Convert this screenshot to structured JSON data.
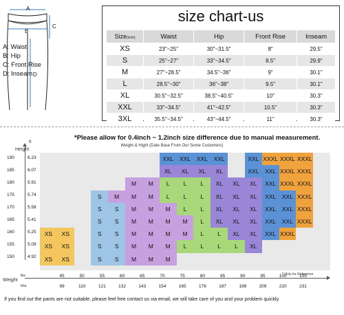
{
  "measure_labels": {
    "a": "A: Waist",
    "b": "B: Hip",
    "c": "C: Front Rise",
    "d": "D: Inseam",
    "letter_a": "A",
    "letter_b": "B",
    "letter_c": "C",
    "letter_d": "D"
  },
  "size_chart": {
    "title": "size chart-us",
    "headers": {
      "size": "Size",
      "size_unit": "(inch)",
      "waist": "Waist",
      "hip": "Hip",
      "front_rise": "Front Rise",
      "inseam": "Inseam"
    },
    "rows": [
      {
        "size": "XS",
        "waist": "23\"~25\"",
        "hip": "30\"~31.5\"",
        "rise": "8\"",
        "inseam": "29.5\""
      },
      {
        "size": "S",
        "waist": "25\"~27\"",
        "hip": "33\"~34.5\"",
        "rise": "8.5\"",
        "inseam": "29.9\""
      },
      {
        "size": "M",
        "waist": "27\"~28.5\"",
        "hip": "34.5\"~36\"",
        "rise": "9\"",
        "inseam": "30.1\""
      },
      {
        "size": "L",
        "waist": "28.5\"~30\"",
        "hip": "36\"~38\"",
        "rise": "9.5\"",
        "inseam": "30.1\""
      },
      {
        "size": "XL",
        "waist": "30.5\"~32.5\"",
        "hip": "38.5\"~40.5\"",
        "rise": "10\"",
        "inseam": "30.3\""
      },
      {
        "size": "XXL",
        "waist": "33\"~34.5\"",
        "hip": "41\"~42.5\"",
        "rise": "10.5\"",
        "inseam": "30.3\""
      },
      {
        "size": "3XL",
        "waist": "35.5\"~34.5\"",
        "hip": "43\"~44.5\"",
        "rise": "11\"",
        "inseam": "30.3\""
      }
    ]
  },
  "note": "*Please allow for 0.4inch ~ 1.2inch size difference due to manual measurement.",
  "subnote": "Weight & Hight (Date Base From Our Some Customers)",
  "axis": {
    "height_title": "Height",
    "ft_title": "ft",
    "weight_title": "Weight",
    "lbs": "lbs",
    "kbs": "kbs",
    "ref_note": "* Only for Reference",
    "heights": [
      "190",
      "185",
      "180",
      "175",
      "170",
      "165",
      "160",
      "155",
      "150"
    ],
    "feet": [
      "6.23",
      "6.07",
      "5.91",
      "5.74",
      "5.58",
      "5.41",
      "5.25",
      "5.09",
      "4.92"
    ],
    "lbs_values": [
      "45",
      "50",
      "55",
      "60",
      "65",
      "70",
      "75",
      "80",
      "85",
      "90",
      "95",
      "100",
      "105"
    ],
    "kbs_values": [
      "99",
      "110",
      "121",
      "132",
      "143",
      "154",
      "165",
      "176",
      "187",
      "198",
      "209",
      "220",
      "231"
    ]
  },
  "colors": {
    "xs": "#f3c65f",
    "s": "#9ec5e6",
    "m": "#c7a0e0",
    "m_top": "#d8b0ea",
    "l": "#a8d87a",
    "xl": "#9a86d6",
    "xxl": "#5b92d6",
    "xxxl": "#f0a23c",
    "grid_bg": "#e9e9e9"
  },
  "grid_labels": {
    "xs": "XS",
    "s": "S",
    "m": "M",
    "l": "L",
    "xl": "XL",
    "xxl": "XXL",
    "xxxl": "XXXL"
  },
  "footer": "If you find out the pants are not suitable, please feel free contact us via email, we will take care of you and your problem quickly."
}
